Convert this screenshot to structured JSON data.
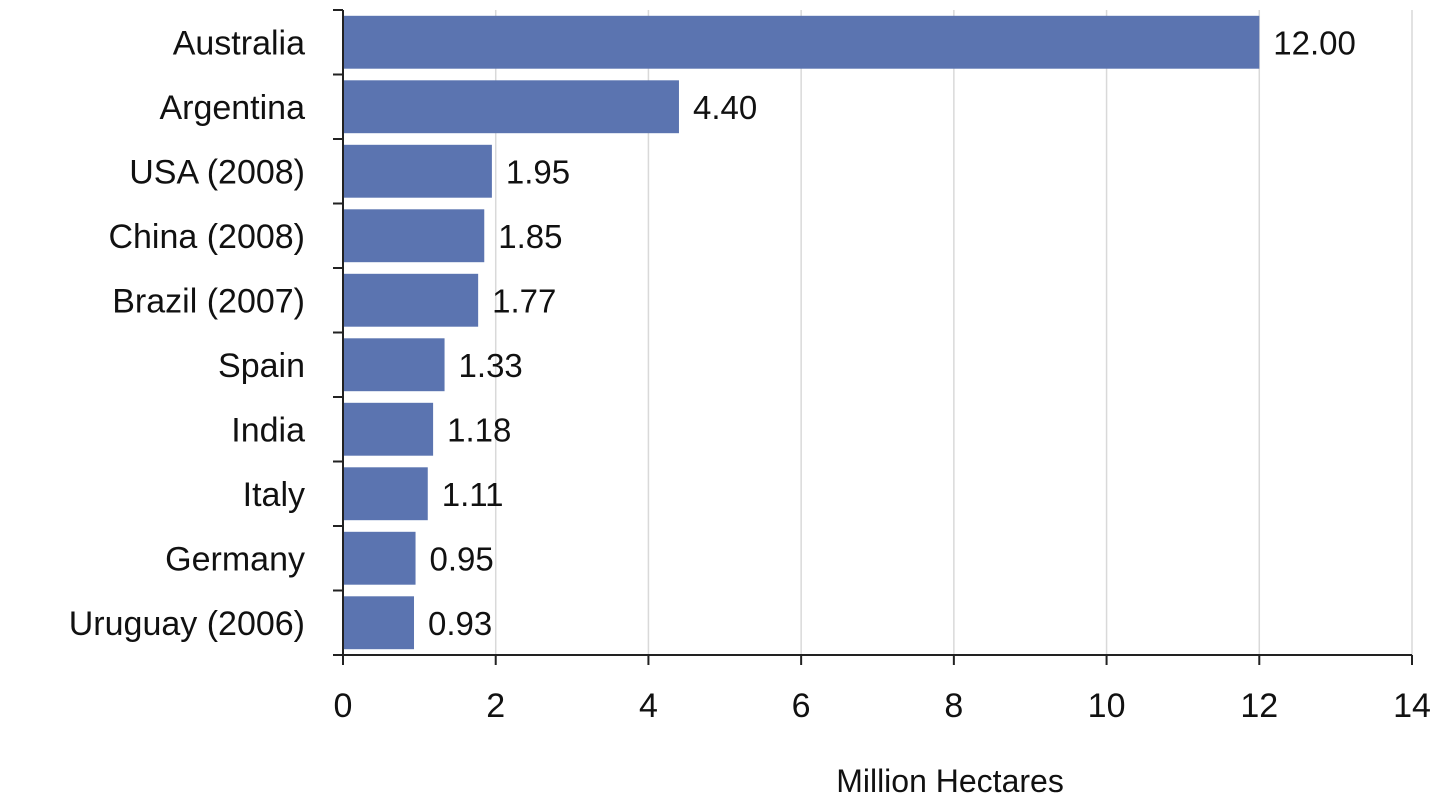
{
  "chart_data": {
    "type": "bar",
    "orientation": "horizontal",
    "categories": [
      "Australia",
      "Argentina",
      "USA (2008)",
      "China (2008)",
      "Brazil (2007)",
      "Spain",
      "India",
      "Italy",
      "Germany",
      "Uruguay (2006)"
    ],
    "values": [
      12.0,
      4.4,
      1.95,
      1.85,
      1.77,
      1.33,
      1.18,
      1.11,
      0.95,
      0.93
    ],
    "value_labels": [
      "12.00",
      "4.40",
      "1.95",
      "1.85",
      "1.77",
      "1.33",
      "1.18",
      "1.11",
      "0.95",
      "0.93"
    ],
    "title": "",
    "xlabel": "Million Hectares",
    "ylabel": "",
    "xlim": [
      0,
      14
    ],
    "xticks": [
      0,
      2,
      4,
      6,
      8,
      10,
      12,
      14
    ],
    "grid": "vertical",
    "legend": "none",
    "bar_color": "#5b74b0"
  }
}
